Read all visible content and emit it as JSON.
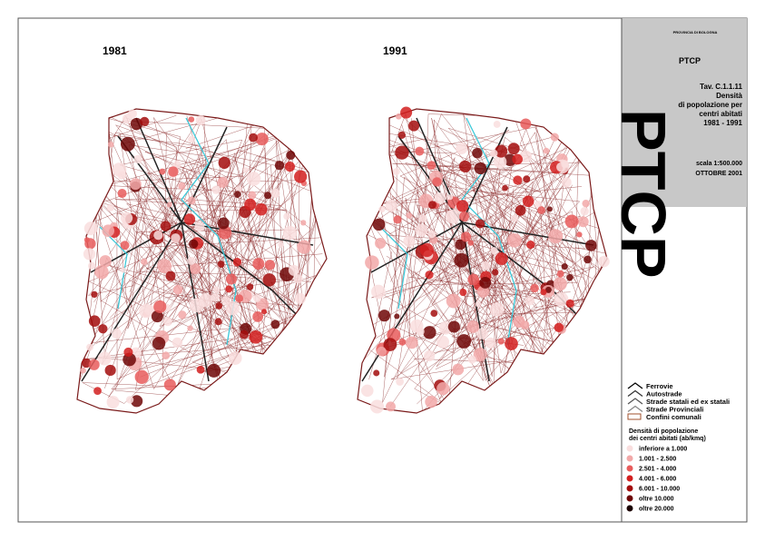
{
  "maps": [
    {
      "label": "1981"
    },
    {
      "label": "1991"
    }
  ],
  "header": {
    "institution": "PROVINCIA DI BOLOGNA",
    "logo": "PTCP",
    "title_lines": [
      "Tav. C.1.1.11",
      "Densità",
      "di popolazione per",
      "centri abitati",
      "1981 - 1991"
    ],
    "scale": "scala 1:500.000",
    "date": "OTTOBRE 2001"
  },
  "legend": {
    "lines": [
      {
        "label": "Ferrovie",
        "color": "#000000"
      },
      {
        "label": "Autostrade",
        "color": "#333333"
      },
      {
        "label": "Strade statali ed ex statali",
        "color": "#555555"
      },
      {
        "label": "Strade Provinciali",
        "color": "#888888"
      },
      {
        "label": "Confini comunali",
        "color": "#a0522d"
      }
    ],
    "density_title_lines": [
      "Densità di popolazione",
      "dei centri abitati (ab/kmq)"
    ],
    "density": [
      {
        "label": "inferiore a 1.000",
        "color": "#f9dede"
      },
      {
        "label": "1.001 - 2.500",
        "color": "#f2a8a8"
      },
      {
        "label": "2.501 - 4.000",
        "color": "#e85c5c"
      },
      {
        "label": "4.001 - 6.000",
        "color": "#d21f1f"
      },
      {
        "label": "6.001 - 10.000",
        "color": "#a30d0d"
      },
      {
        "label": "oltre 10.000",
        "color": "#6e0606"
      },
      {
        "label": "oltre 20.000",
        "color": "#1a0000"
      }
    ]
  }
}
